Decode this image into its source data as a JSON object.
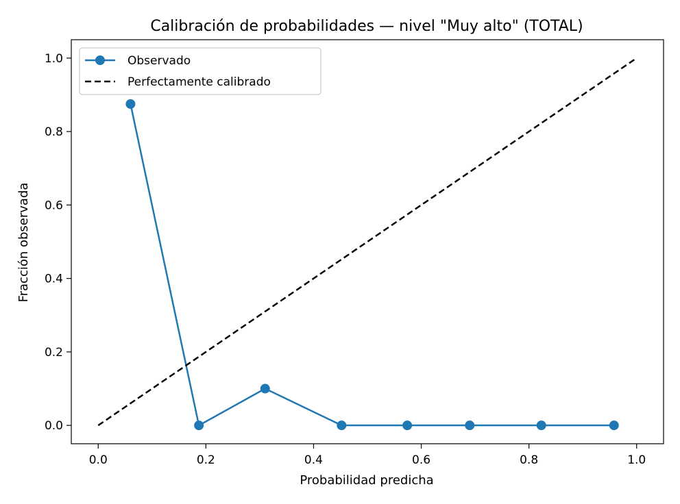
{
  "chart_data": {
    "type": "line",
    "title": "Calibración de probabilidades — nivel \"Muy alto\" (TOTAL)",
    "xlabel": "Probabilidad predicha",
    "ylabel": "Fracción observada",
    "xlim": [
      -0.05,
      1.05
    ],
    "ylim": [
      -0.05,
      1.05
    ],
    "xticks": [
      "0.0",
      "0.2",
      "0.4",
      "0.6",
      "0.8",
      "1.0"
    ],
    "yticks": [
      "0.0",
      "0.2",
      "0.4",
      "0.6",
      "0.8",
      "1.0"
    ],
    "grid": false,
    "legend_position": "top-left",
    "series": [
      {
        "name": "Observado",
        "color": "#1f77b4",
        "style": "solid-with-markers",
        "x": [
          0.06,
          0.187,
          0.31,
          0.452,
          0.574,
          0.69,
          0.823,
          0.958
        ],
        "y": [
          0.875,
          0.0,
          0.1,
          0.0,
          0.0,
          0.0,
          0.0,
          0.0
        ]
      },
      {
        "name": "Perfectamente calibrado",
        "color": "#000000",
        "style": "dashed",
        "x": [
          0.0,
          1.0
        ],
        "y": [
          0.0,
          1.0
        ]
      }
    ]
  }
}
